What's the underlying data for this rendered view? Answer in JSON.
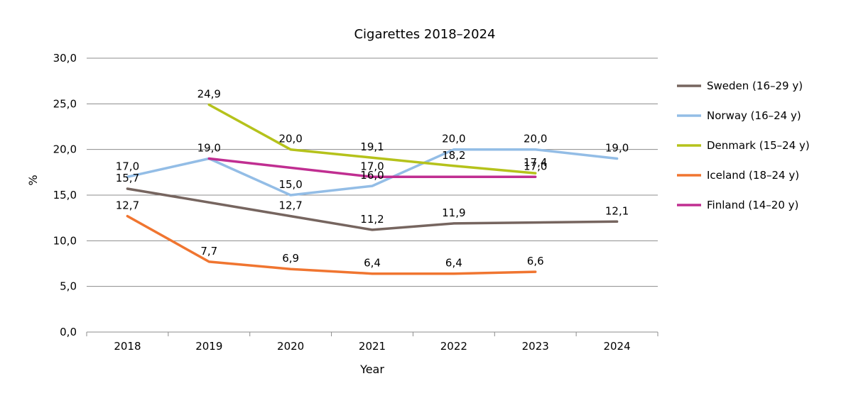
{
  "chart_data": {
    "type": "line",
    "title": "Cigarettes 2018–2024",
    "xlabel": "Year",
    "ylabel": "%",
    "categories": [
      "2018",
      "2019",
      "2020",
      "2021",
      "2022",
      "2023",
      "2024"
    ],
    "ylim": [
      0,
      30
    ],
    "yticks": [
      "0,0",
      "5,0",
      "10,0",
      "15,0",
      "20,0",
      "25,0",
      "30,0"
    ],
    "grid": true,
    "legend_position": "right",
    "series": [
      {
        "name": "Sweden (16–29 y)",
        "color": "#76655f",
        "values": [
          15.7,
          null,
          12.7,
          11.2,
          11.9,
          null,
          12.1
        ],
        "labels": [
          "15,7",
          "",
          "12,7",
          "11,2",
          "11,9",
          "",
          "12,1"
        ]
      },
      {
        "name": "Norway (16–24 y)",
        "color": "#93bde6",
        "values": [
          17.0,
          19.0,
          15.0,
          16.0,
          20.0,
          20.0,
          19.0
        ],
        "labels": [
          "17,0",
          "19,0",
          "15,0",
          "16,0",
          "20,0",
          "20,0",
          "19,0"
        ]
      },
      {
        "name": "Denmark (15–24 y)",
        "color": "#b5c21b",
        "values": [
          null,
          24.9,
          20.0,
          19.1,
          18.2,
          17.4,
          null
        ],
        "labels": [
          "",
          "24,9",
          "20,0",
          "19,1",
          "18,2",
          "17,4",
          ""
        ]
      },
      {
        "name": "Iceland (18–24 y)",
        "color": "#f07530",
        "values": [
          12.7,
          7.7,
          6.9,
          6.4,
          6.4,
          6.6,
          null
        ],
        "labels": [
          "12,7",
          "7,7",
          "6,9",
          "6,4",
          "6,4",
          "6,6",
          ""
        ]
      },
      {
        "name": "Finland (14–20 y)",
        "color": "#c02e91",
        "values": [
          null,
          19.0,
          null,
          17.0,
          null,
          17.0,
          null
        ],
        "labels": [
          "",
          "",
          "",
          "17,0",
          "",
          "17,0",
          ""
        ]
      }
    ]
  }
}
